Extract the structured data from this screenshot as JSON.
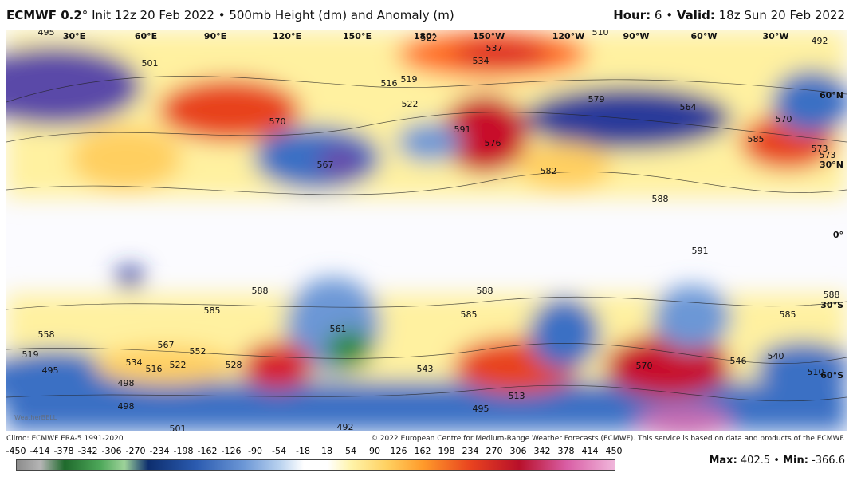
{
  "header": {
    "model": "ECMWF 0.2",
    "degree": "°",
    "init": "Init 12z 20 Feb 2022",
    "sep": "•",
    "field": "500mb Height (dm) and Anomaly (m)",
    "hour_label": "Hour:",
    "hour": "6",
    "valid_label": "Valid:",
    "valid": "18z Sun 20 Feb 2022"
  },
  "map": {
    "lon_labels": [
      "30°E",
      "60°E",
      "90°E",
      "120°E",
      "150°E",
      "180°",
      "150°W",
      "120°W",
      "90°W",
      "60°W",
      "30°W"
    ],
    "lat_labels": [
      "60°N",
      "30°N",
      "0°",
      "30°S",
      "60°S"
    ],
    "contour_labels": [
      "495",
      "501",
      "522",
      "537",
      "534",
      "510",
      "492",
      "516",
      "519",
      "522",
      "570",
      "591",
      "576",
      "582",
      "579",
      "564",
      "570",
      "585",
      "573",
      "588",
      "567",
      "585",
      "588",
      "585",
      "588",
      "591",
      "588",
      "558",
      "519",
      "495",
      "498",
      "567",
      "552",
      "534",
      "516",
      "522",
      "528",
      "543",
      "585",
      "573",
      "570",
      "546",
      "540",
      "510",
      "513",
      "495",
      "492",
      "501",
      "498",
      "561"
    ],
    "watermark": "WeatherBELL"
  },
  "footer": {
    "climo": "Climo: ECMWF ERA-5 1991-2020",
    "copyright": "© 2022 European Centre for Medium-Range Weather Forecasts (ECMWF). This service is based on data and products of the ECMWF.",
    "scale": [
      "-450",
      "-414",
      "-378",
      "-342",
      "-306",
      "-270",
      "-234",
      "-198",
      "-162",
      "-126",
      "-90",
      "-54",
      "-18",
      "18",
      "54",
      "90",
      "126",
      "162",
      "198",
      "234",
      "270",
      "306",
      "342",
      "378",
      "414",
      "450"
    ],
    "max_label": "Max:",
    "max": "402.5",
    "min_label": "Min:",
    "min": "-366.6"
  }
}
